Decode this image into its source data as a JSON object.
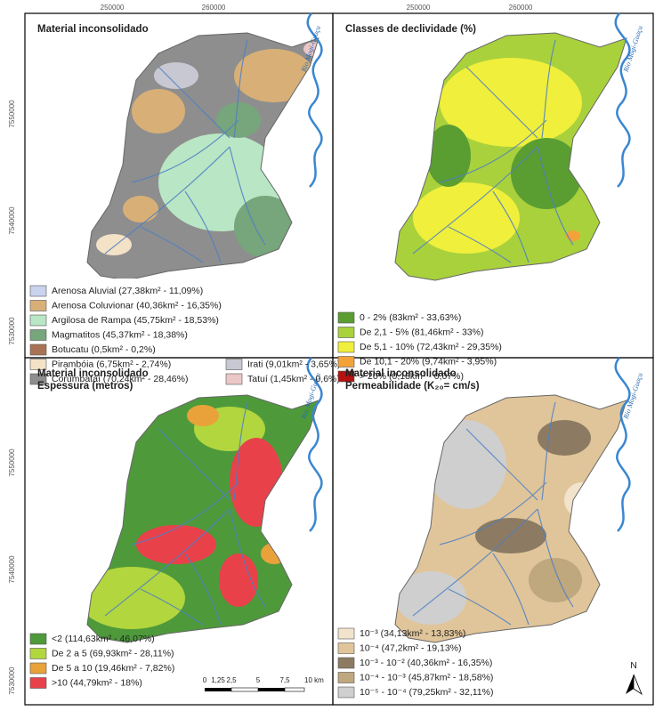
{
  "coords": {
    "x_labels": [
      "250000",
      "260000"
    ],
    "y_labels": [
      "7550000",
      "7540000",
      "7530000"
    ]
  },
  "river": "Rio Mogi-Guaçu",
  "panels": [
    {
      "title": [
        "Material inconsolidado"
      ],
      "legend": [
        {
          "label": "Arenosa Aluvial (27,38km² - 11,09%)",
          "color": "#c9d3ee"
        },
        {
          "label": "Arenosa Coluvionar (40,36km² - 16,35%)",
          "color": "#d8b077"
        },
        {
          "label": "Argilosa de Rampa (45,75km² - 18,53%)",
          "color": "#b9e6c4"
        },
        {
          "label": "Magmatitos (45,37km² - 18,38%)",
          "color": "#77a57c"
        },
        {
          "label": "Botucatu (0,5km² - 0,2%)",
          "color": "#a87355"
        },
        {
          "label": "Pirambóia (6,75km² - 2,74%)",
          "color": "#f3e2c6"
        },
        {
          "label": "Corumbataí (70,24km² - 28,46%)",
          "color": "#8e8e8e"
        },
        {
          "label": "Irati (9,01km² - 3,65%)",
          "color": "#c8c8d2"
        },
        {
          "label": "Tatuí (1,45km² - 0,6%)",
          "color": "#ecc7c7"
        }
      ]
    },
    {
      "title": [
        "Classes de declividade (%)"
      ],
      "legend": [
        {
          "label": "0 - 2% (83km² - 33,63%)",
          "color": "#5a9e32"
        },
        {
          "label": "De 2,1 - 5% (81,46km² - 33%)",
          "color": "#a9d13c"
        },
        {
          "label": "De 5,1 - 10% (72,43km² - 29,35%)",
          "color": "#f0ef3c"
        },
        {
          "label": "De 10,1 - 20% (9,74km² - 3,95%)",
          "color": "#f3a23a"
        },
        {
          "label": "> 20% (0,18km² - 0,07%)",
          "color": "#b5110f"
        }
      ]
    },
    {
      "title": [
        "Material inconsolidado",
        "Espessura (metros)"
      ],
      "legend": [
        {
          "label": "<2 (114,63km² - 46,07%)",
          "color": "#4e9a3b"
        },
        {
          "label": "De 2 a 5 (69,93km² - 28,11%)",
          "color": "#b2d63e"
        },
        {
          "label": "De 5 a 10 (19,46km² - 7,82%)",
          "color": "#e9a23a"
        },
        {
          "label": ">10 (44,79km² - 18%)",
          "color": "#e8414a"
        }
      ]
    },
    {
      "title": [
        "Material inconsolidado",
        "Permeabilidade (K₂₀= cm/s)"
      ],
      "legend": [
        {
          "label": "10⁻³ (34,13km² - 13,83%)",
          "color": "#f2e3cc"
        },
        {
          "label": "10⁻⁴ (47,2km² - 19,13%)",
          "color": "#e0c59a"
        },
        {
          "label": "10⁻³ - 10⁻² (40,36km² - 16,35%)",
          "color": "#8c7b62"
        },
        {
          "label": "10⁻⁴ - 10⁻³ (45,87km² - 18,58%)",
          "color": "#bfa77e"
        },
        {
          "label": "10⁻⁵ - 10⁻⁴ (79,25km² - 32,11%)",
          "color": "#cfcfcf"
        }
      ]
    }
  ],
  "scale_bar": [
    "0",
    "1,25",
    "2,5",
    "5",
    "7,5",
    "10 km"
  ],
  "north": "N"
}
